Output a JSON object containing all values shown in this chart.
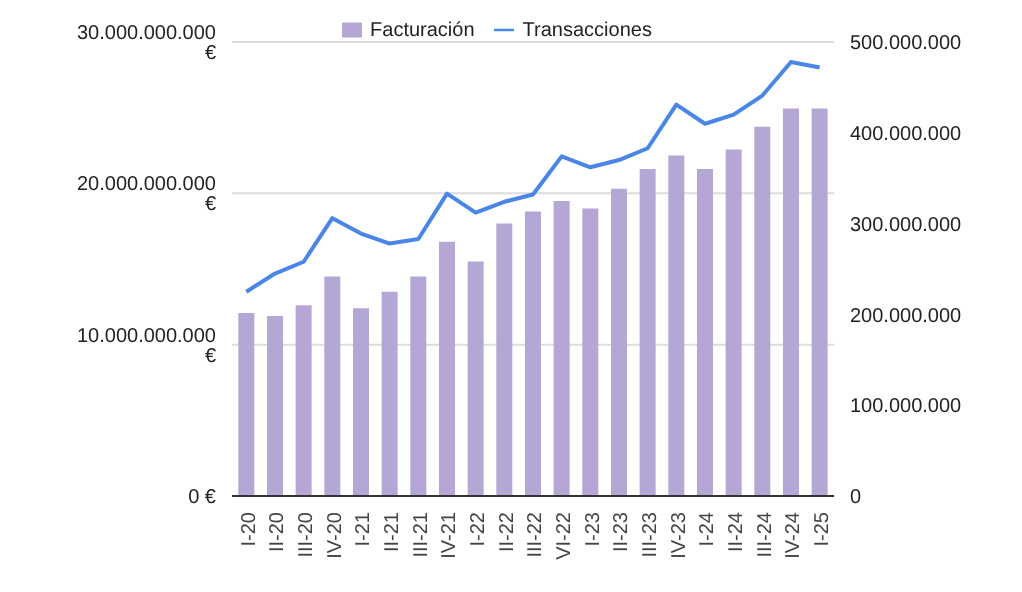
{
  "chart_data": {
    "type": "bar",
    "categories": [
      "I-20",
      "II-20",
      "III-20",
      "IV-20",
      "I-21",
      "II-21",
      "III-21",
      "IV-21",
      "I-22",
      "II-22",
      "III-22",
      "VI-22",
      "I-23",
      "II-23",
      "III-23",
      "IV-23",
      "I-24",
      "II-24",
      "III-24",
      "IV-24",
      "I-25"
    ],
    "series": [
      {
        "name": "Facturación",
        "color": "#b4a7d6",
        "values": [
          12100000000,
          11900000000,
          12600000000,
          14500000000,
          12400000000,
          13500000000,
          14500000000,
          16800000000,
          15500000000,
          18000000000,
          18800000000,
          19500000000,
          19000000000,
          20300000000,
          21600000000,
          22500000000,
          21600000000,
          22900000000,
          24400000000,
          25600000000,
          25600000000
        ]
      },
      {
        "name": "Transacciones",
        "type": "line",
        "axis": "y2",
        "color": "#4a86e8",
        "values": [
          225000000,
          245000000,
          258000000,
          306000000,
          289000000,
          278000000,
          283000000,
          333000000,
          312000000,
          324000000,
          332000000,
          374000000,
          362000000,
          370000000,
          383000000,
          431000000,
          410000000,
          420000000,
          441000000,
          478000000,
          472000000
        ]
      }
    ],
    "ylim": [
      0,
      30000000000
    ],
    "yticks": [
      {
        "value": 0,
        "label": "0 €"
      },
      {
        "value": 10000000000,
        "label": "10.000.000.000 €"
      },
      {
        "value": 20000000000,
        "label": "20.000.000.000 €"
      },
      {
        "value": 30000000000,
        "label": "30.000.000.000 €"
      }
    ],
    "y2lim": [
      0,
      500000000
    ],
    "y2ticks": [
      0,
      {
        "value": 100000000,
        "label": "100.000.000"
      },
      {
        "value": 200000000,
        "label": "200.000.000"
      },
      {
        "value": 300000000,
        "label": "300.000.000"
      },
      {
        "value": 400000000,
        "label": "400.000.000"
      },
      {
        "value": 500000000,
        "label": "500.000.000"
      }
    ],
    "grid": "y",
    "legend": "top",
    "marker": "none",
    "line_style": "solid"
  }
}
